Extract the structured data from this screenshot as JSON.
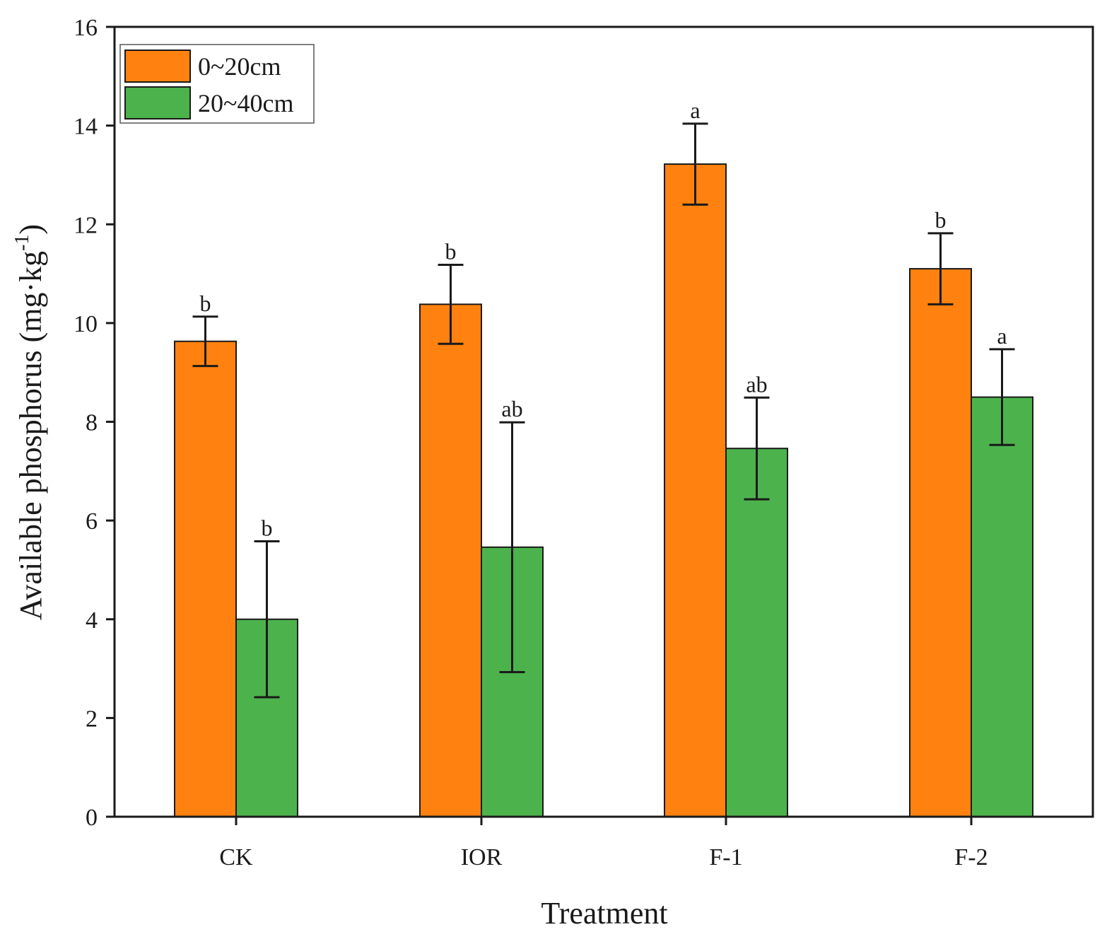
{
  "chart_data": {
    "type": "bar",
    "title": "",
    "xlabel": "Treatment",
    "ylabel": {
      "prefix": "Available phosphorus (mg·kg",
      "superscript": "-1",
      "suffix": ")"
    },
    "ylim": [
      0,
      16
    ],
    "yticks": [
      0,
      2,
      4,
      6,
      8,
      10,
      12,
      14,
      16
    ],
    "categories": [
      "CK",
      "IOR",
      "F-1",
      "F-2"
    ],
    "legend_position": "top-left",
    "series": [
      {
        "name": "0~20cm",
        "color": "#ff8210",
        "values": [
          9.63,
          10.38,
          13.22,
          11.1
        ],
        "errors": [
          0.5,
          0.8,
          0.82,
          0.72
        ],
        "significance": [
          "b",
          "b",
          "a",
          "b"
        ]
      },
      {
        "name": "20~40cm",
        "color": "#4cb34c",
        "values": [
          4.0,
          5.46,
          7.46,
          8.5
        ],
        "errors": [
          1.58,
          2.53,
          1.03,
          0.97
        ],
        "significance": [
          "b",
          "ab",
          "ab",
          "a"
        ]
      }
    ]
  }
}
